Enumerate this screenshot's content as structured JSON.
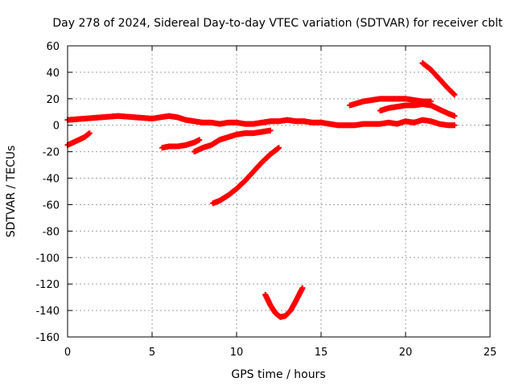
{
  "chart_data": {
    "type": "scatter",
    "title": "Day 278 of 2024, Sidereal Day-to-day VTEC variation (SDTVAR) for receiver cblt",
    "xlabel": "GPS time / hours",
    "ylabel": "SDTVAR / TECUs",
    "xlim": [
      0,
      25
    ],
    "ylim": [
      -160,
      60
    ],
    "xticks": [
      0,
      5,
      10,
      15,
      20,
      25
    ],
    "yticks": [
      -160,
      -140,
      -120,
      -100,
      -80,
      -60,
      -40,
      -20,
      0,
      20,
      40,
      60
    ],
    "grid": true,
    "marker_color": "#ff0000",
    "series": [
      {
        "x": [
          0,
          1,
          2,
          3,
          4,
          5,
          5.5,
          6,
          6.5,
          7,
          7.5,
          8,
          8.5,
          9,
          9.5,
          10,
          10.5,
          11,
          11.5,
          12,
          12.5,
          13,
          13.5,
          14
        ],
        "y": [
          4,
          5,
          6,
          7,
          6,
          5,
          6,
          7,
          6,
          4,
          3,
          2,
          2,
          1,
          2,
          2,
          1,
          1,
          2,
          3,
          3,
          4,
          3,
          3
        ]
      },
      {
        "x": [
          14,
          14.5,
          15,
          15.5,
          16,
          16.5,
          17,
          17.5,
          18,
          18.5,
          19,
          19.5,
          20,
          20.5,
          21,
          21.5,
          22,
          22.5,
          22.9
        ],
        "y": [
          3,
          2,
          2,
          1,
          0,
          0,
          0,
          1,
          1,
          1,
          2,
          1,
          3,
          2,
          4,
          3,
          1,
          0,
          0
        ]
      },
      {
        "x": [
          0,
          0.5,
          1,
          1.3
        ],
        "y": [
          -15,
          -12,
          -9,
          -6
        ]
      },
      {
        "x": [
          5.6,
          6,
          6.5,
          7,
          7.5,
          7.8
        ],
        "y": [
          -17,
          -16,
          -16,
          -15,
          -13,
          -11
        ]
      },
      {
        "x": [
          7.5,
          8,
          8.5,
          9,
          9.5,
          10,
          10.5,
          11,
          11.5,
          12
        ],
        "y": [
          -20,
          -17,
          -15,
          -11,
          -9,
          -7,
          -6,
          -6,
          -5,
          -4
        ]
      },
      {
        "x": [
          8.6,
          9,
          9.5,
          10,
          10.5,
          11,
          11.5,
          12,
          12.5
        ],
        "y": [
          -59,
          -57,
          -53,
          -48,
          -42,
          -35,
          -28,
          -22,
          -17
        ]
      },
      {
        "x": [
          11.7,
          12,
          12.3,
          12.6,
          12.9,
          13.2,
          13.5,
          13.9
        ],
        "y": [
          -128,
          -136,
          -142,
          -145,
          -144,
          -140,
          -133,
          -123
        ]
      },
      {
        "x": [
          16.7,
          17.5,
          18,
          18.5,
          19,
          19.5,
          20,
          20.5,
          21,
          21.5
        ],
        "y": [
          15,
          18,
          19,
          20,
          20,
          20,
          20,
          19,
          18,
          18
        ]
      },
      {
        "x": [
          18.5,
          19,
          19.5,
          20,
          20.5,
          21,
          21.5,
          22,
          22.5,
          22.9
        ],
        "y": [
          11,
          13,
          14,
          15,
          15,
          16,
          15,
          12,
          9,
          7
        ]
      },
      {
        "x": [
          21,
          21.5,
          22,
          22.5,
          22.9
        ],
        "y": [
          47,
          42,
          35,
          28,
          23
        ]
      }
    ]
  }
}
